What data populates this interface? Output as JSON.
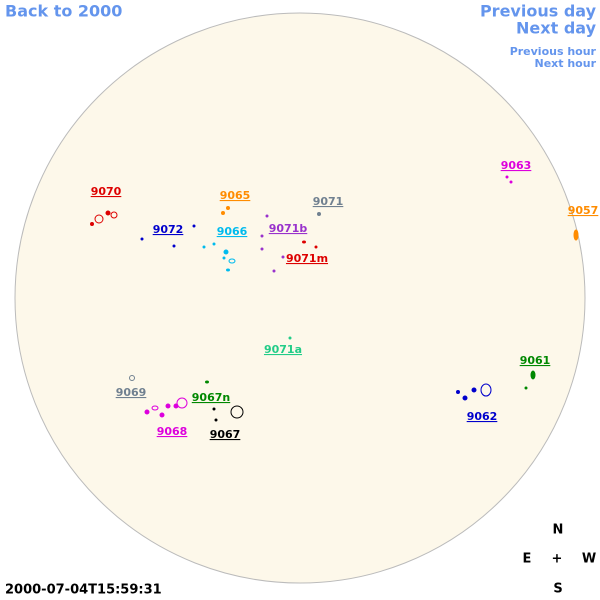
{
  "navigation": {
    "back": "Back to 2000",
    "previous_day": "Previous day",
    "next_day": "Next day",
    "previous_hour": "Previous hour",
    "next_hour": "Next hour"
  },
  "regions": [
    {
      "label": "9070",
      "color": "#dd0000"
    },
    {
      "label": "9065",
      "color": "#ff8c00"
    },
    {
      "label": "9071",
      "color": "#708090"
    },
    {
      "label": "9063",
      "color": "#dd00dd"
    },
    {
      "label": "9057",
      "color": "#ff8c00"
    },
    {
      "label": "9072",
      "color": "#0000cc"
    },
    {
      "label": "9066",
      "color": "#00bbee"
    },
    {
      "label": "9071b",
      "color": "#9932cc"
    },
    {
      "label": "9071m",
      "color": "#dd0000"
    },
    {
      "label": "9071a",
      "color": "#22cc88"
    },
    {
      "label": "9061",
      "color": "#008800"
    },
    {
      "label": "9069",
      "color": "#708090"
    },
    {
      "label": "9067n",
      "color": "#008800"
    },
    {
      "label": "9068",
      "color": "#dd00dd"
    },
    {
      "label": "9067",
      "color": "#000000"
    },
    {
      "label": "9062",
      "color": "#0000cc"
    }
  ],
  "compass": {
    "north": "N",
    "east": "E",
    "center": "+",
    "west": "W",
    "south": "S"
  },
  "timestamp": "2000-07-04T15:59:31"
}
